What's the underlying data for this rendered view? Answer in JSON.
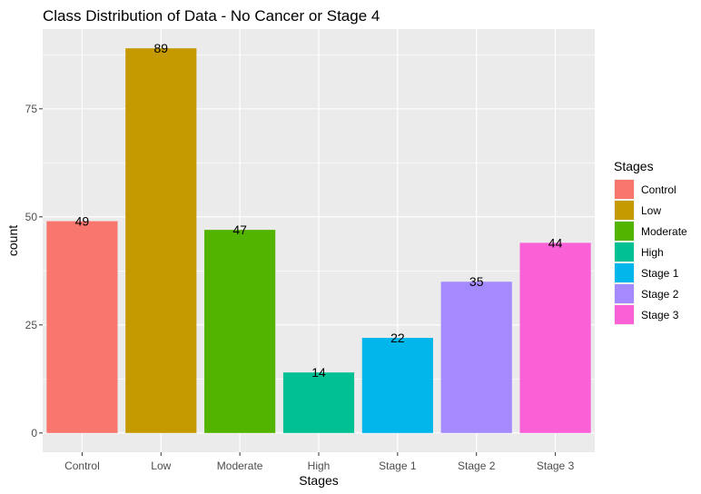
{
  "chart_data": {
    "type": "bar",
    "title": "Class Distribution of Data - No Cancer or Stage 4",
    "xlabel": "Stages",
    "ylabel": "count",
    "categories": [
      "Control",
      "Low",
      "Moderate",
      "High",
      "Stage 1",
      "Stage 2",
      "Stage 3"
    ],
    "values": [
      49,
      89,
      47,
      14,
      22,
      35,
      44
    ],
    "data_labels": [
      "49",
      "89",
      "47",
      "14",
      "22",
      "35",
      "44"
    ],
    "colors": [
      "#F8766D",
      "#C49A00",
      "#53B400",
      "#00C094",
      "#00B6EB",
      "#A58AFF",
      "#FB61D7"
    ],
    "yticks": [
      0,
      25,
      50,
      75
    ],
    "ytick_labels": [
      "0",
      "25",
      "50",
      "75"
    ],
    "ylim": [
      -4.45,
      93.45
    ],
    "grid": true,
    "panel_background": "#EBEBEB",
    "grid_color": "#FFFFFF",
    "legend": {
      "title": "Stages",
      "position": "right",
      "items": [
        "Control",
        "Low",
        "Moderate",
        "High",
        "Stage 1",
        "Stage 2",
        "Stage 3"
      ]
    }
  }
}
